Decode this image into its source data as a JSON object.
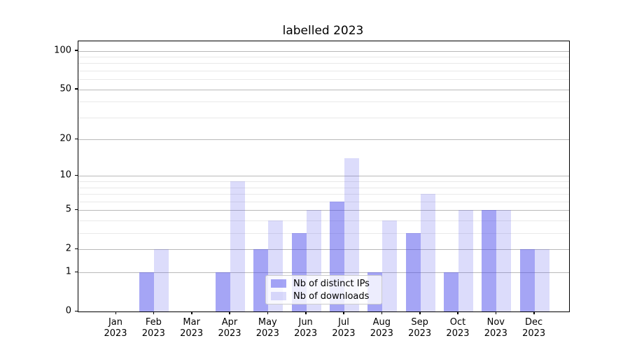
{
  "chart_data": {
    "type": "bar",
    "title": "labelled 2023",
    "categories": [
      "Jan",
      "Feb",
      "Mar",
      "Apr",
      "May",
      "Jun",
      "Jul",
      "Aug",
      "Sep",
      "Oct",
      "Nov",
      "Dec"
    ],
    "x_year": "2023",
    "series": [
      {
        "name": "Nb of distinct IPs",
        "key": "distinct-ips",
        "color": "rgba(82,82,235,0.52)",
        "values": [
          0,
          1,
          0,
          1,
          2,
          3,
          6,
          1,
          3,
          1,
          5,
          2
        ]
      },
      {
        "name": "Nb of downloads",
        "key": "downloads",
        "color": "rgba(82,82,235,0.20)",
        "values": [
          0,
          2,
          0,
          9,
          4,
          5,
          14,
          4,
          7,
          5,
          5,
          2
        ]
      }
    ],
    "y_scale": "log10(1+v)",
    "y_major_ticks": [
      0,
      1,
      2,
      5,
      10,
      20,
      50,
      100
    ],
    "y_minor_gridlines": [
      3,
      4,
      6,
      7,
      8,
      9,
      30,
      40,
      60,
      70,
      80,
      90
    ],
    "ylim": [
      0,
      118.4
    ],
    "grid": "horizontal",
    "legend_position": "lower-center",
    "colors": {
      "bar_base": "#5252eb",
      "major_grid": "#b9b9b9",
      "minor_grid": "#e9e9e9",
      "spine": "#000000"
    }
  }
}
